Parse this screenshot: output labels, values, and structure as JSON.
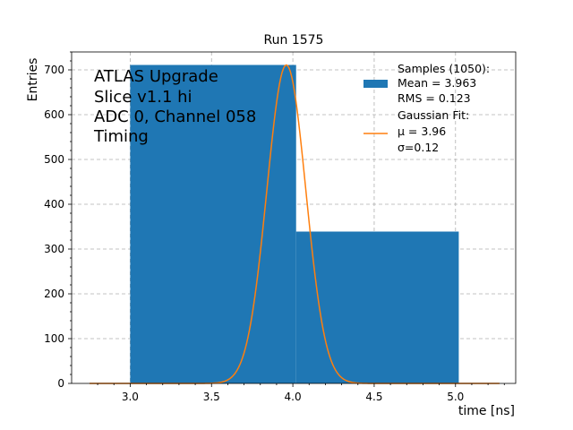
{
  "chart_data": {
    "type": "bar",
    "title": "Run 1575",
    "xlabel": "time [ns]",
    "ylabel": "Entries",
    "xlim": [
      2.64,
      5.37
    ],
    "ylim": [
      0,
      740
    ],
    "grid": true,
    "xticks": [
      "3.0",
      "3.5",
      "4.0",
      "4.5",
      "5.0"
    ],
    "xtick_values": [
      3.0,
      3.5,
      4.0,
      4.5,
      5.0
    ],
    "yticks": [
      "0",
      "100",
      "200",
      "300",
      "400",
      "500",
      "600",
      "700"
    ],
    "ytick_values": [
      0,
      100,
      200,
      300,
      400,
      500,
      600,
      700
    ],
    "histogram": {
      "name": "Samples (1050):",
      "color": "#1f77b4",
      "bins": [
        {
          "x0": 3.0,
          "x1": 4.02,
          "value": 711
        },
        {
          "x0": 4.02,
          "x1": 5.02,
          "value": 339
        }
      ]
    },
    "fit": {
      "name": "Gaussian Fit:",
      "color": "#ff7f0e",
      "mu": 3.96,
      "sigma": 0.12,
      "peak": 711,
      "x_range": [
        2.75,
        5.27
      ]
    },
    "legend": {
      "placement": "top-right",
      "samples_title": "Samples (1050):",
      "samples_mean": " Mean = 3.963",
      "samples_rms": " RMS = 0.123",
      "fit_title": "Gaussian Fit:",
      "fit_mu": " μ = 3.96",
      "fit_sigma": " σ=0.12"
    },
    "annotation": [
      "ATLAS Upgrade",
      "Slice v1.1 hi",
      "ADC 0, Channel 058",
      "Timing"
    ]
  }
}
